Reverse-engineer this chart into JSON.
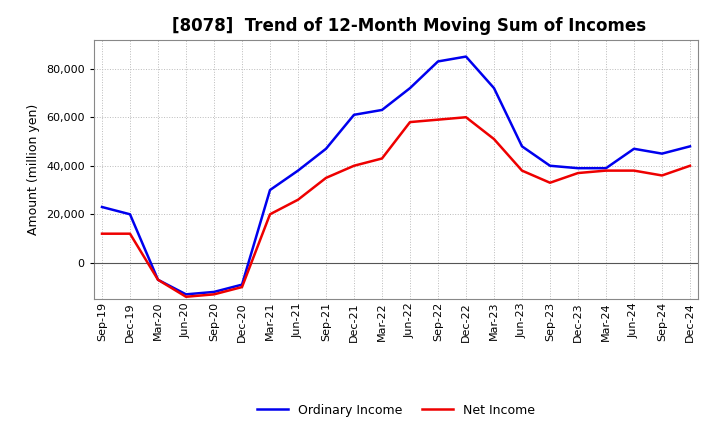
{
  "title": "[8078]  Trend of 12-Month Moving Sum of Incomes",
  "ylabel": "Amount (million yen)",
  "x_labels": [
    "Sep-19",
    "Dec-19",
    "Mar-20",
    "Jun-20",
    "Sep-20",
    "Dec-20",
    "Mar-21",
    "Jun-21",
    "Sep-21",
    "Dec-21",
    "Mar-22",
    "Jun-22",
    "Sep-22",
    "Dec-22",
    "Mar-23",
    "Jun-23",
    "Sep-23",
    "Dec-23",
    "Mar-24",
    "Jun-24",
    "Sep-24",
    "Dec-24"
  ],
  "ordinary_income": [
    23000,
    20000,
    -7000,
    -13000,
    -12000,
    -9000,
    30000,
    38000,
    47000,
    61000,
    63000,
    72000,
    83000,
    85000,
    72000,
    48000,
    40000,
    39000,
    39000,
    47000,
    45000,
    48000
  ],
  "net_income": [
    12000,
    12000,
    -7000,
    -14000,
    -13000,
    -10000,
    20000,
    26000,
    35000,
    40000,
    43000,
    58000,
    59000,
    60000,
    51000,
    38000,
    33000,
    37000,
    38000,
    38000,
    36000,
    40000
  ],
  "ordinary_color": "#0000ee",
  "net_color": "#ee0000",
  "bg_color": "#ffffff",
  "plot_bg_color": "#ffffff",
  "grid_color": "#bbbbbb",
  "ylim": [
    -15000,
    92000
  ],
  "yticks": [
    0,
    20000,
    40000,
    60000,
    80000
  ],
  "line_width": 1.8,
  "title_fontsize": 12,
  "ylabel_fontsize": 9,
  "tick_fontsize": 8
}
